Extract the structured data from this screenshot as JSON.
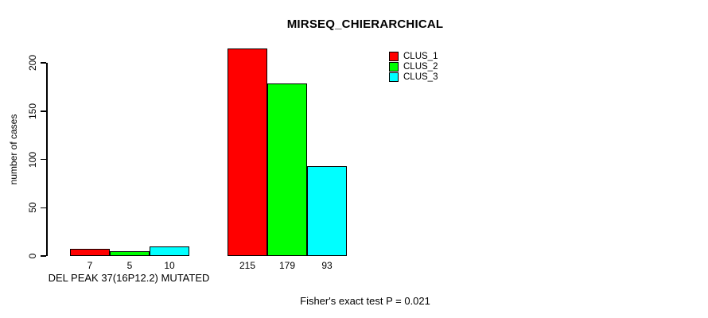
{
  "chart_data": {
    "type": "bar",
    "title": "MIRSEQ_CHIERARCHICAL",
    "ylabel": "number of cases",
    "xlabel": "DEL PEAK 37(16P12.2) MUTATED",
    "annotation": "Fisher's exact test P = 0.021",
    "yticks": [
      0,
      50,
      100,
      150,
      200
    ],
    "ylim": [
      0,
      215
    ],
    "grid": false,
    "legend_position": "top-right",
    "bar_value_labels_shown": true,
    "series": [
      {
        "name": "CLUS_1",
        "color": "#ff0000",
        "values": [
          7,
          215
        ]
      },
      {
        "name": "CLUS_2",
        "color": "#00ff00",
        "values": [
          5,
          179
        ]
      },
      {
        "name": "CLUS_3",
        "color": "#00ffff",
        "values": [
          10,
          93
        ]
      }
    ]
  }
}
